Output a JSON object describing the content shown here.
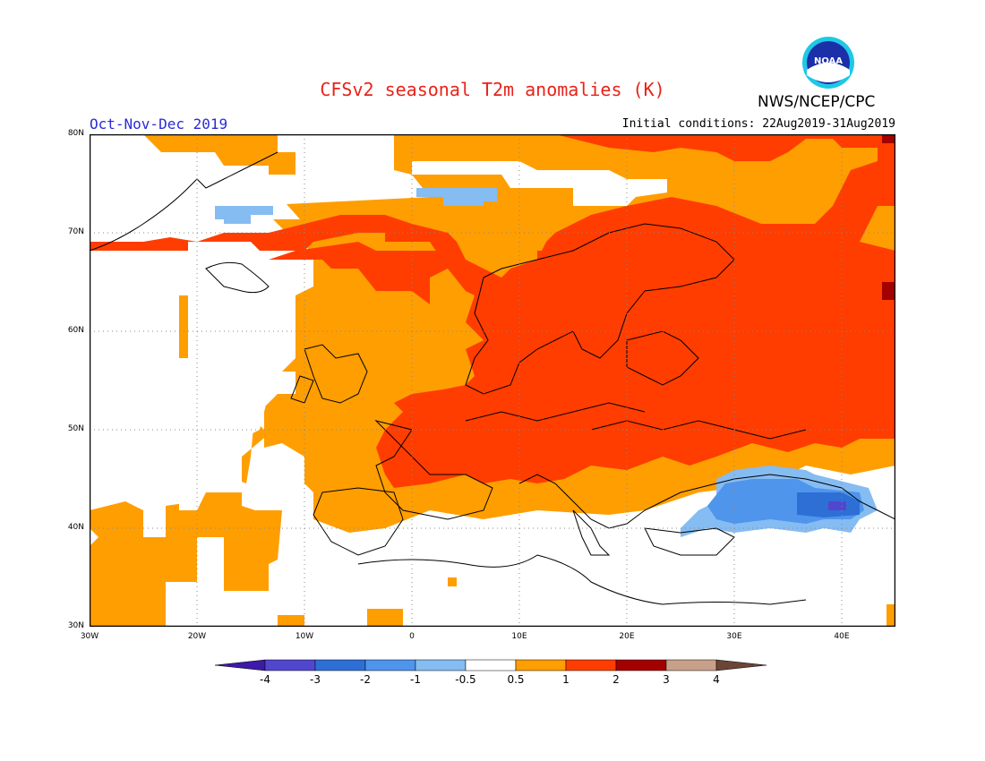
{
  "header": {
    "title": "CFSv2 seasonal T2m anomalies (K)",
    "agency": "NWS/NCEP/CPC",
    "logo_text": "NOAA",
    "season": "Oct-Nov-Dec 2019",
    "initial_conditions": "Initial conditions: 22Aug2019-31Aug2019"
  },
  "axes": {
    "lat_labels": [
      "80N",
      "70N",
      "60N",
      "50N",
      "40N",
      "30N"
    ],
    "lon_labels": [
      "30W",
      "20W",
      "10W",
      "0",
      "10E",
      "20E",
      "30E",
      "40E"
    ],
    "lat_range": [
      30,
      80
    ],
    "lon_range": [
      -30,
      45
    ],
    "grid": "dotted"
  },
  "colorbar": {
    "tick_labels": [
      "-4",
      "-3",
      "-2",
      "-1",
      "-0.5",
      "0.5",
      "1",
      "2",
      "3",
      "4"
    ],
    "colors": [
      "#3d1aa8",
      "#5147cf",
      "#2e6fd6",
      "#4f95ec",
      "#85bcf2",
      "#ffffff",
      "#ff9e00",
      "#ff3d00",
      "#a30000",
      "#c8a08a",
      "#6b4535"
    ],
    "classes": [
      {
        "range": "< -4",
        "color": "#3d1aa8"
      },
      {
        "range": "-4 to -3",
        "color": "#5147cf"
      },
      {
        "range": "-3 to -2",
        "color": "#2e6fd6"
      },
      {
        "range": "-2 to -1",
        "color": "#4f95ec"
      },
      {
        "range": "-1 to -0.5",
        "color": "#85bcf2"
      },
      {
        "range": "-0.5 to 0.5",
        "color": "#ffffff"
      },
      {
        "range": "0.5 to 1",
        "color": "#ff9e00"
      },
      {
        "range": "1 to 2",
        "color": "#ff3d00"
      },
      {
        "range": "2 to 3",
        "color": "#a30000"
      },
      {
        "range": "3 to 4",
        "color": "#c8a08a"
      },
      {
        "range": "> 4",
        "color": "#6b4535"
      }
    ]
  },
  "anomaly_summary": {
    "europe_mainland": "1 to 2",
    "scandinavia": "1 to 2",
    "north_atlantic": "0.5 to 1",
    "mediterranean_north_africa": "-0.5 to 0.5",
    "black_sea": "-2 to -1",
    "east_black_sea_core": "-3 to -2"
  }
}
